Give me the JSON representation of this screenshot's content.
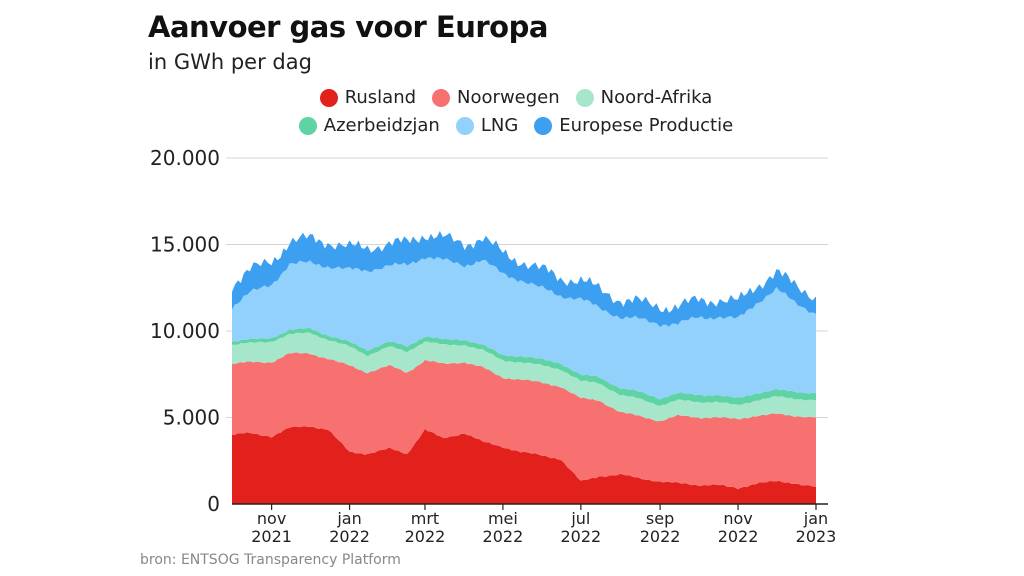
{
  "header": {
    "title": "Aanvoer gas voor Europa",
    "subtitle": "in GWh per dag"
  },
  "legend": {
    "row1": [
      {
        "label": "Rusland",
        "color": "#e3211c"
      },
      {
        "label": "Noorwegen",
        "color": "#f87171"
      },
      {
        "label": "Noord-Afrika",
        "color": "#a6e7cc"
      }
    ],
    "row2": [
      {
        "label": "Azerbeidzjan",
        "color": "#5fd3a3"
      },
      {
        "label": "LNG",
        "color": "#91d1fb"
      },
      {
        "label": "Europese Productie",
        "color": "#3d9ff0"
      }
    ]
  },
  "source": "bron: ENTSOG Transparency Platform",
  "chart_data": {
    "type": "area",
    "stacked": true,
    "y_ticks": [
      "0",
      "5.000",
      "10.000",
      "15.000",
      "20.000"
    ],
    "ylim": [
      0,
      20000
    ],
    "x_ticks": [
      {
        "label": [
          "nov",
          "2021"
        ],
        "date": "2021-11-01"
      },
      {
        "label": [
          "jan",
          "2022"
        ],
        "date": "2022-01-01"
      },
      {
        "label": [
          "mrt",
          "2022"
        ],
        "date": "2022-03-01"
      },
      {
        "label": [
          "mei",
          "2022"
        ],
        "date": "2022-05-01"
      },
      {
        "label": [
          "jul",
          "2022"
        ],
        "date": "2022-07-01"
      },
      {
        "label": [
          "sep",
          "2022"
        ],
        "date": "2022-09-01"
      },
      {
        "label": [
          "nov",
          "2022"
        ],
        "date": "2022-11-01"
      },
      {
        "label": [
          "jan",
          "2023"
        ],
        "date": "2023-01-01"
      }
    ],
    "x": [
      "2021-10-01",
      "2021-10-15",
      "2021-11-01",
      "2021-11-15",
      "2021-12-01",
      "2021-12-15",
      "2022-01-01",
      "2022-01-15",
      "2022-02-01",
      "2022-02-15",
      "2022-03-01",
      "2022-03-15",
      "2022-04-01",
      "2022-04-15",
      "2022-05-01",
      "2022-05-15",
      "2022-06-01",
      "2022-06-15",
      "2022-07-01",
      "2022-07-15",
      "2022-08-01",
      "2022-08-15",
      "2022-09-01",
      "2022-09-15",
      "2022-10-01",
      "2022-10-15",
      "2022-11-01",
      "2022-11-15",
      "2022-12-01",
      "2022-12-15",
      "2023-01-01"
    ],
    "series": [
      {
        "name": "Rusland",
        "color": "#e3211c",
        "values": [
          4000,
          4100,
          3900,
          4400,
          4500,
          4300,
          3000,
          2900,
          3200,
          2900,
          4300,
          3800,
          4100,
          3600,
          3300,
          3000,
          2800,
          2600,
          1300,
          1600,
          1700,
          1500,
          1300,
          1200,
          1100,
          1100,
          900,
          1200,
          1300,
          1200,
          1000
        ]
      },
      {
        "name": "Noorwegen",
        "color": "#f87171",
        "values": [
          4100,
          4100,
          4300,
          4300,
          4200,
          4100,
          5000,
          4700,
          4800,
          4700,
          4000,
          4300,
          4100,
          4300,
          4000,
          4200,
          4200,
          4200,
          4800,
          4400,
          3600,
          3600,
          3500,
          3900,
          3900,
          3900,
          4000,
          3900,
          3900,
          3900,
          4000
        ]
      },
      {
        "name": "Noord-Afrika",
        "color": "#a6e7cc",
        "values": [
          1100,
          1100,
          1200,
          1100,
          1200,
          1100,
          1100,
          1000,
          1100,
          1200,
          1100,
          1100,
          1000,
          1000,
          1000,
          1000,
          1000,
          1000,
          1000,
          1000,
          1000,
          1000,
          900,
          900,
          900,
          900,
          800,
          900,
          1000,
          1000,
          1000
        ]
      },
      {
        "name": "Azerbeidzjan",
        "color": "#5fd3a3",
        "values": [
          200,
          200,
          200,
          250,
          250,
          250,
          250,
          300,
          300,
          300,
          300,
          300,
          300,
          300,
          300,
          350,
          350,
          350,
          350,
          350,
          400,
          400,
          400,
          400,
          400,
          400,
          400,
          400,
          400,
          400,
          400
        ]
      },
      {
        "name": "LNG",
        "color": "#91d1fb",
        "values": [
          2000,
          2700,
          3100,
          3800,
          3800,
          4000,
          4200,
          4600,
          4400,
          4700,
          4600,
          4600,
          4300,
          4900,
          4700,
          4400,
          4100,
          3900,
          4400,
          4000,
          4100,
          4200,
          4300,
          4000,
          4500,
          4500,
          4600,
          5200,
          5800,
          5200,
          4600
        ]
      },
      {
        "name": "Europese Productie",
        "color": "#3d9ff0",
        "values": [
          1300,
          1300,
          1300,
          1300,
          1400,
          1400,
          1300,
          1300,
          1300,
          1300,
          1300,
          1300,
          1200,
          1300,
          1200,
          1100,
          1100,
          1000,
          1100,
          1100,
          1000,
          1000,
          1000,
          1000,
          1000,
          1000,
          1000,
          1000,
          1000,
          1000,
          1000
        ]
      }
    ]
  }
}
